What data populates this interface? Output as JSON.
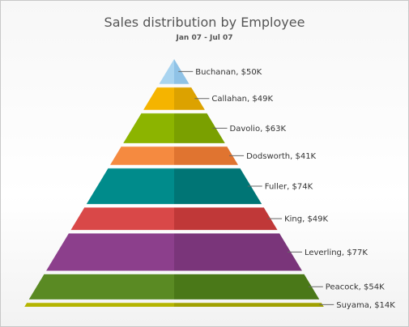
{
  "chart_data": {
    "type": "pyramid",
    "title": "Sales distribution by Employee",
    "subtitle": "Jan 07 - Jul 07",
    "categories": [
      "Buchanan",
      "Callahan",
      "Davolio",
      "Dodsworth",
      "Fuller",
      "King",
      "Leverling",
      "Peacock",
      "Suyama"
    ],
    "values": [
      50,
      49,
      63,
      41,
      74,
      49,
      77,
      54,
      14
    ],
    "value_unit": "K",
    "value_prefix": "$",
    "labels": [
      "Buchanan, $50K",
      "Callahan, $49K",
      "Davolio, $63K",
      "Dodsworth, $41K",
      "Fuller, $74K",
      "King, $49K",
      "Leverling, $77K",
      "Peacock, $54K",
      "Suyama, $14K"
    ],
    "colors": [
      "#a9d4f0",
      "#f5b400",
      "#8cb400",
      "#f58a40",
      "#008b8b",
      "#d94848",
      "#8c3f8c",
      "#5a8a23",
      "#b4b400"
    ],
    "shadow_colors": [
      "#8fc2e6",
      "#dca200",
      "#7aa000",
      "#e07430",
      "#007575",
      "#c03838",
      "#7a357a",
      "#4a7818",
      "#a0a000"
    ]
  }
}
